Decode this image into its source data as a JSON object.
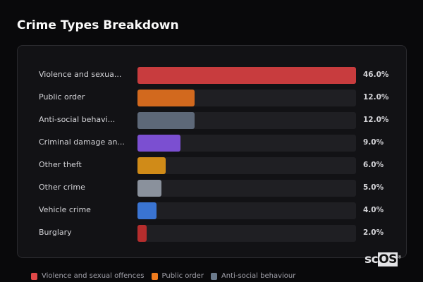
{
  "chart_data": {
    "type": "bar",
    "orientation": "horizontal",
    "title": "Crime Types Breakdown",
    "categories": [
      "Violence and sexua...",
      "Public order",
      "Anti-social behavi...",
      "Criminal damage an...",
      "Other theft",
      "Other crime",
      "Vehicle crime",
      "Burglary"
    ],
    "values": [
      46.0,
      12.0,
      12.0,
      9.0,
      6.0,
      5.0,
      4.0,
      2.0
    ],
    "value_labels": [
      "46.0%",
      "12.0%",
      "12.0%",
      "9.0%",
      "6.0%",
      "5.0%",
      "4.0%",
      "2.0%"
    ],
    "xlim": [
      0,
      46
    ],
    "colors": [
      "#c83c3e",
      "#d2691e",
      "#5d6878",
      "#7b4fd1",
      "#d08b18",
      "#8a919c",
      "#3a74d2",
      "#b52d2d"
    ],
    "legend": [
      {
        "label": "Violence and sexual offences",
        "color": "#e04848"
      },
      {
        "label": "Public order",
        "color": "#f07c1e"
      },
      {
        "label": "Anti-social behaviour",
        "color": "#6b7a8c"
      }
    ]
  },
  "logo": {
    "text_a": "sc",
    "text_b": "OS",
    "mark": "®"
  }
}
